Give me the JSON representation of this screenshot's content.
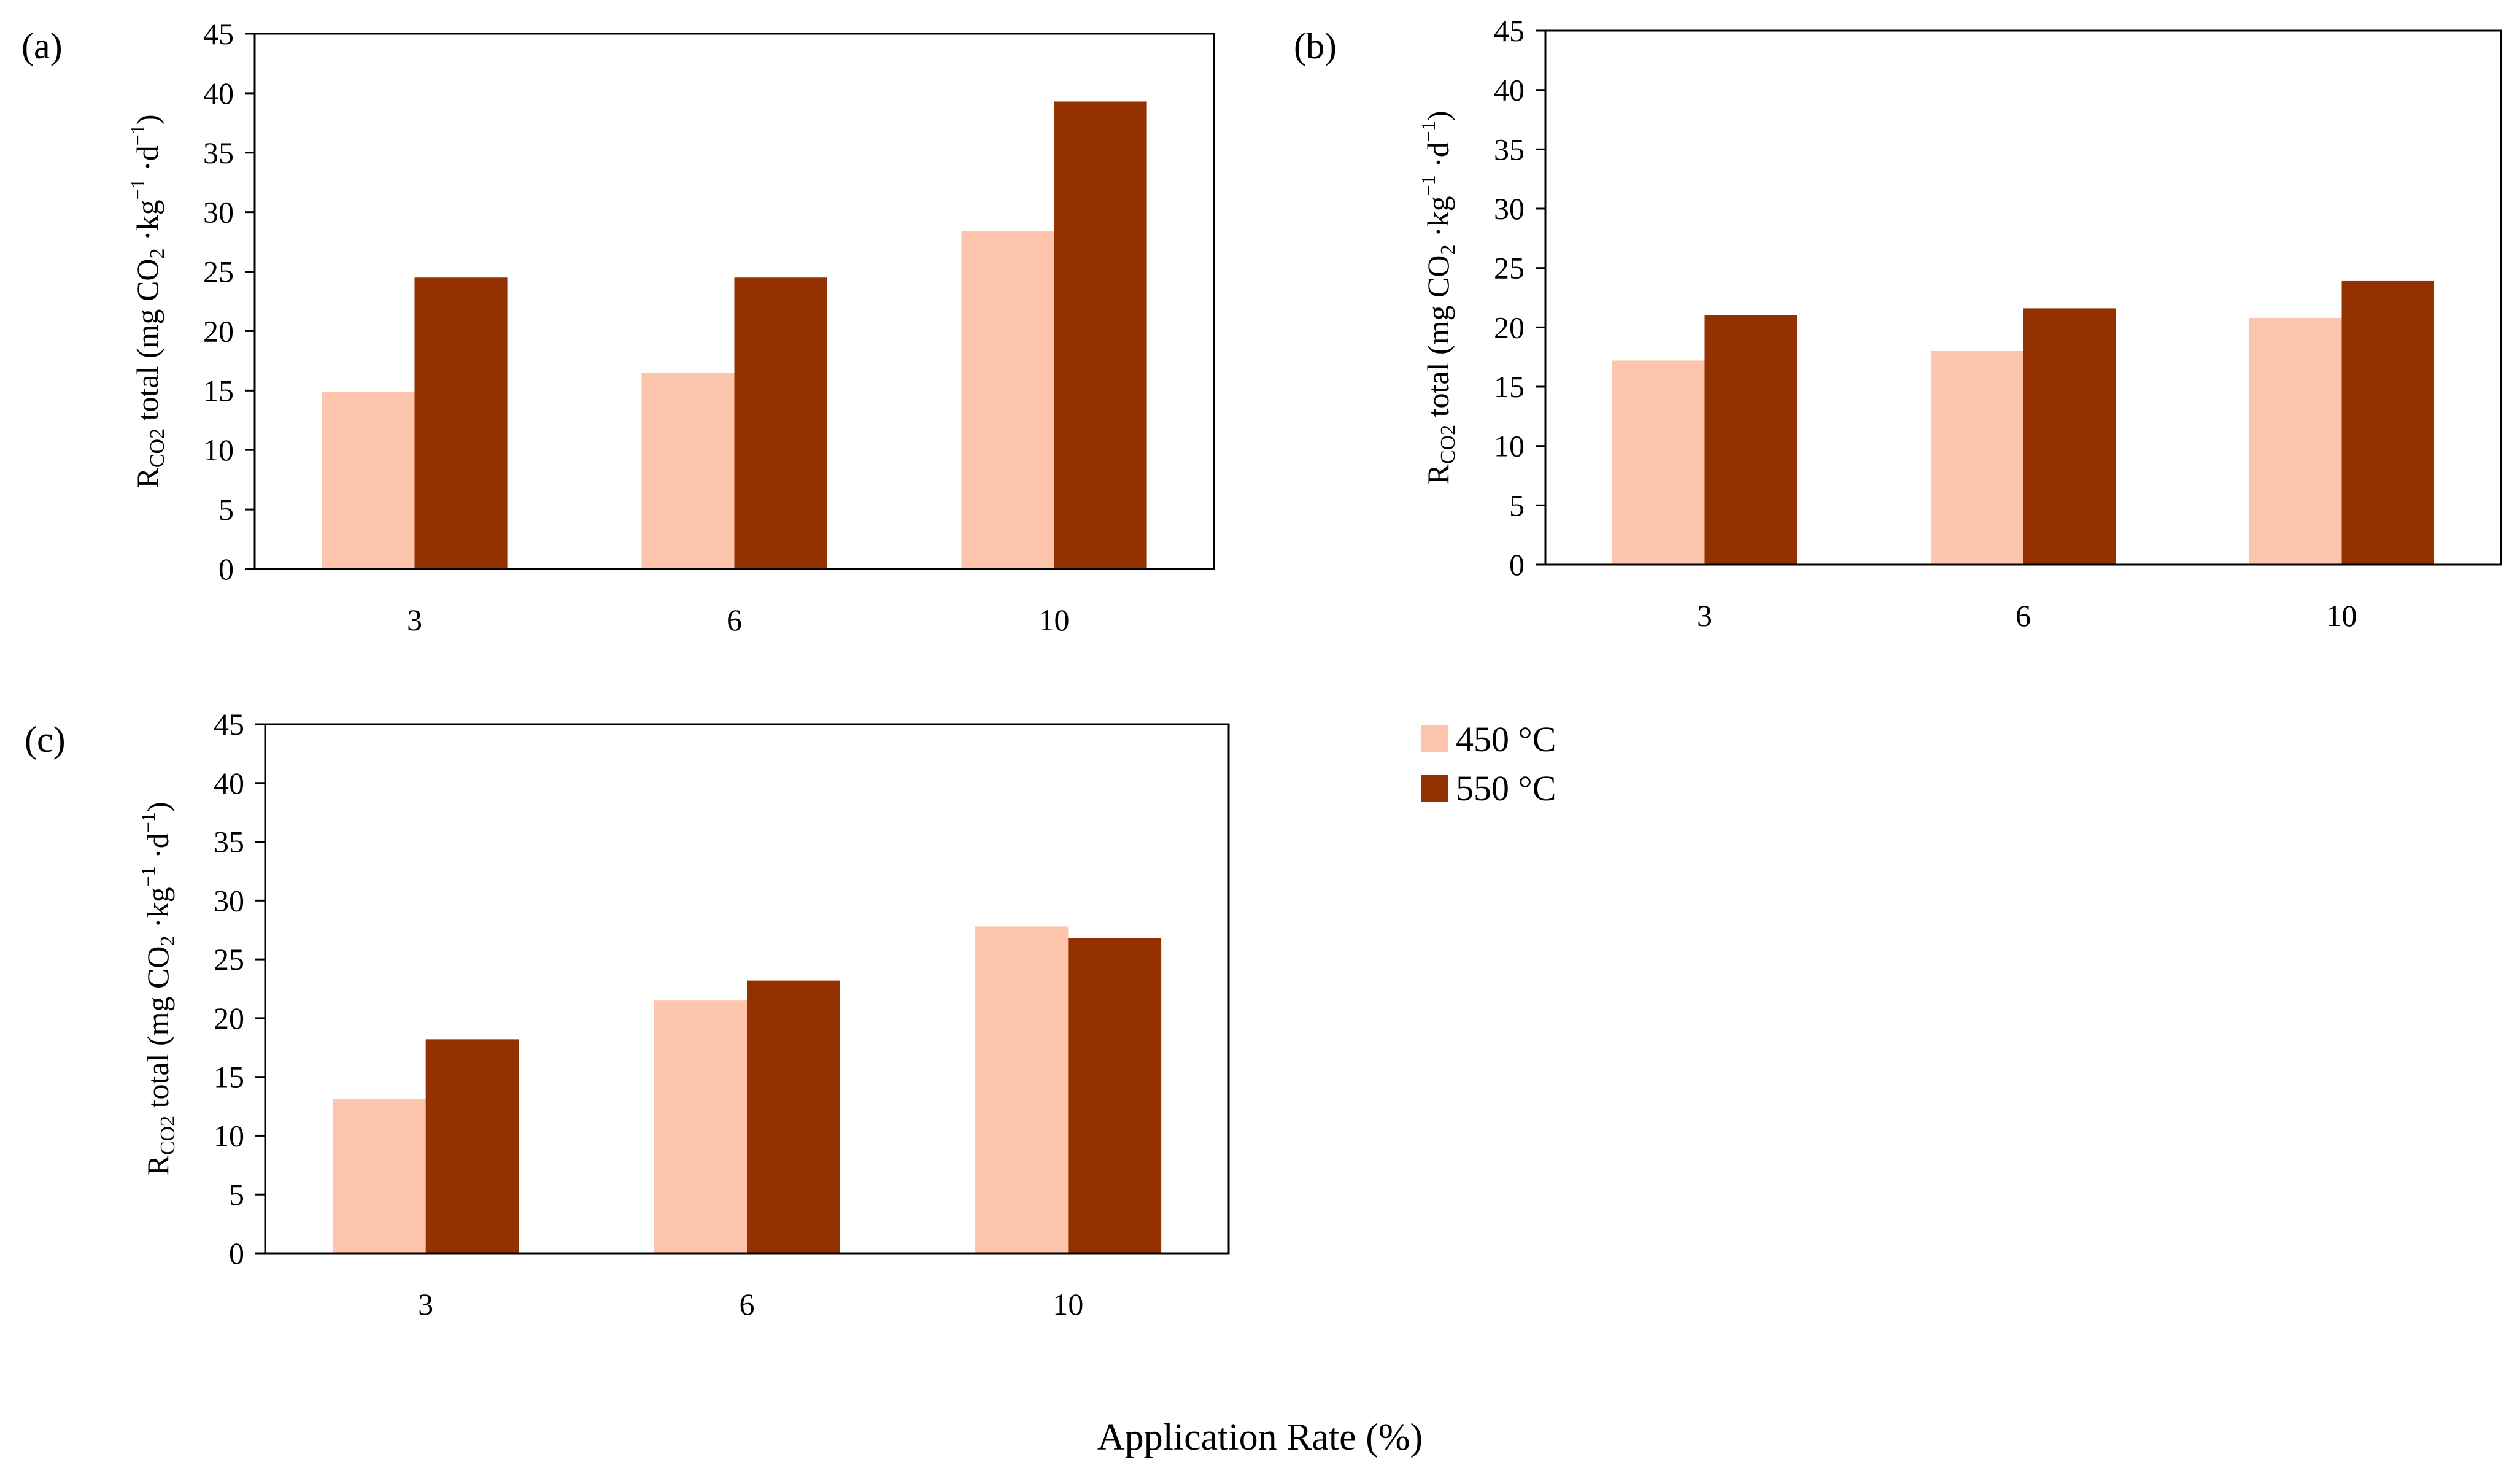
{
  "colors": {
    "s450": "#FDC5AB",
    "s550": "#943100",
    "axis": "#000000"
  },
  "legend": {
    "items": [
      {
        "label": "450 °C",
        "color": "#FDC5AB"
      },
      {
        "label": "550 °C",
        "color": "#943100"
      }
    ]
  },
  "xlabel": "Application Rate (%)",
  "ylabel_parts": {
    "r": "R",
    "sub": "CO2",
    "main": " total (mg CO",
    "sub2": "2",
    "kg": " ·kg",
    "sup1": "−1",
    "d": " ·d",
    "sup2": "−1",
    "close": ")"
  },
  "chart_data": [
    {
      "type": "bar",
      "panel_label": "(a)",
      "categories": [
        "3",
        "6",
        "10"
      ],
      "series": [
        {
          "name": "450 °C",
          "values": [
            14.9,
            16.5,
            28.4
          ]
        },
        {
          "name": "550 °C",
          "values": [
            24.5,
            24.5,
            39.3
          ]
        }
      ],
      "ylim": [
        0,
        45
      ],
      "yticks": [
        0,
        5,
        10,
        15,
        20,
        25,
        30,
        35,
        40,
        45
      ],
      "ylabel": "RCO2 total (mg CO2 ·kg−1 ·d−1)"
    },
    {
      "type": "bar",
      "panel_label": "(b)",
      "categories": [
        "3",
        "6",
        "10"
      ],
      "series": [
        {
          "name": "450 °C",
          "values": [
            17.2,
            18.0,
            20.8
          ]
        },
        {
          "name": "550 °C",
          "values": [
            21.0,
            21.6,
            23.9
          ]
        }
      ],
      "ylim": [
        0,
        45
      ],
      "yticks": [
        0,
        5,
        10,
        15,
        20,
        25,
        30,
        35,
        40,
        45
      ],
      "ylabel": "RCO2 total (mg CO2 ·kg−1 ·d−1)"
    },
    {
      "type": "bar",
      "panel_label": "(c)",
      "categories": [
        "3",
        "6",
        "10"
      ],
      "series": [
        {
          "name": "450 °C",
          "values": [
            13.1,
            21.5,
            27.8
          ]
        },
        {
          "name": "550 °C",
          "values": [
            18.2,
            23.2,
            26.8
          ]
        }
      ],
      "ylim": [
        0,
        45
      ],
      "yticks": [
        0,
        5,
        10,
        15,
        20,
        25,
        30,
        35,
        40,
        45
      ],
      "ylabel": "RCO2 total (mg CO2 ·kg−1 ·d−1)"
    }
  ]
}
